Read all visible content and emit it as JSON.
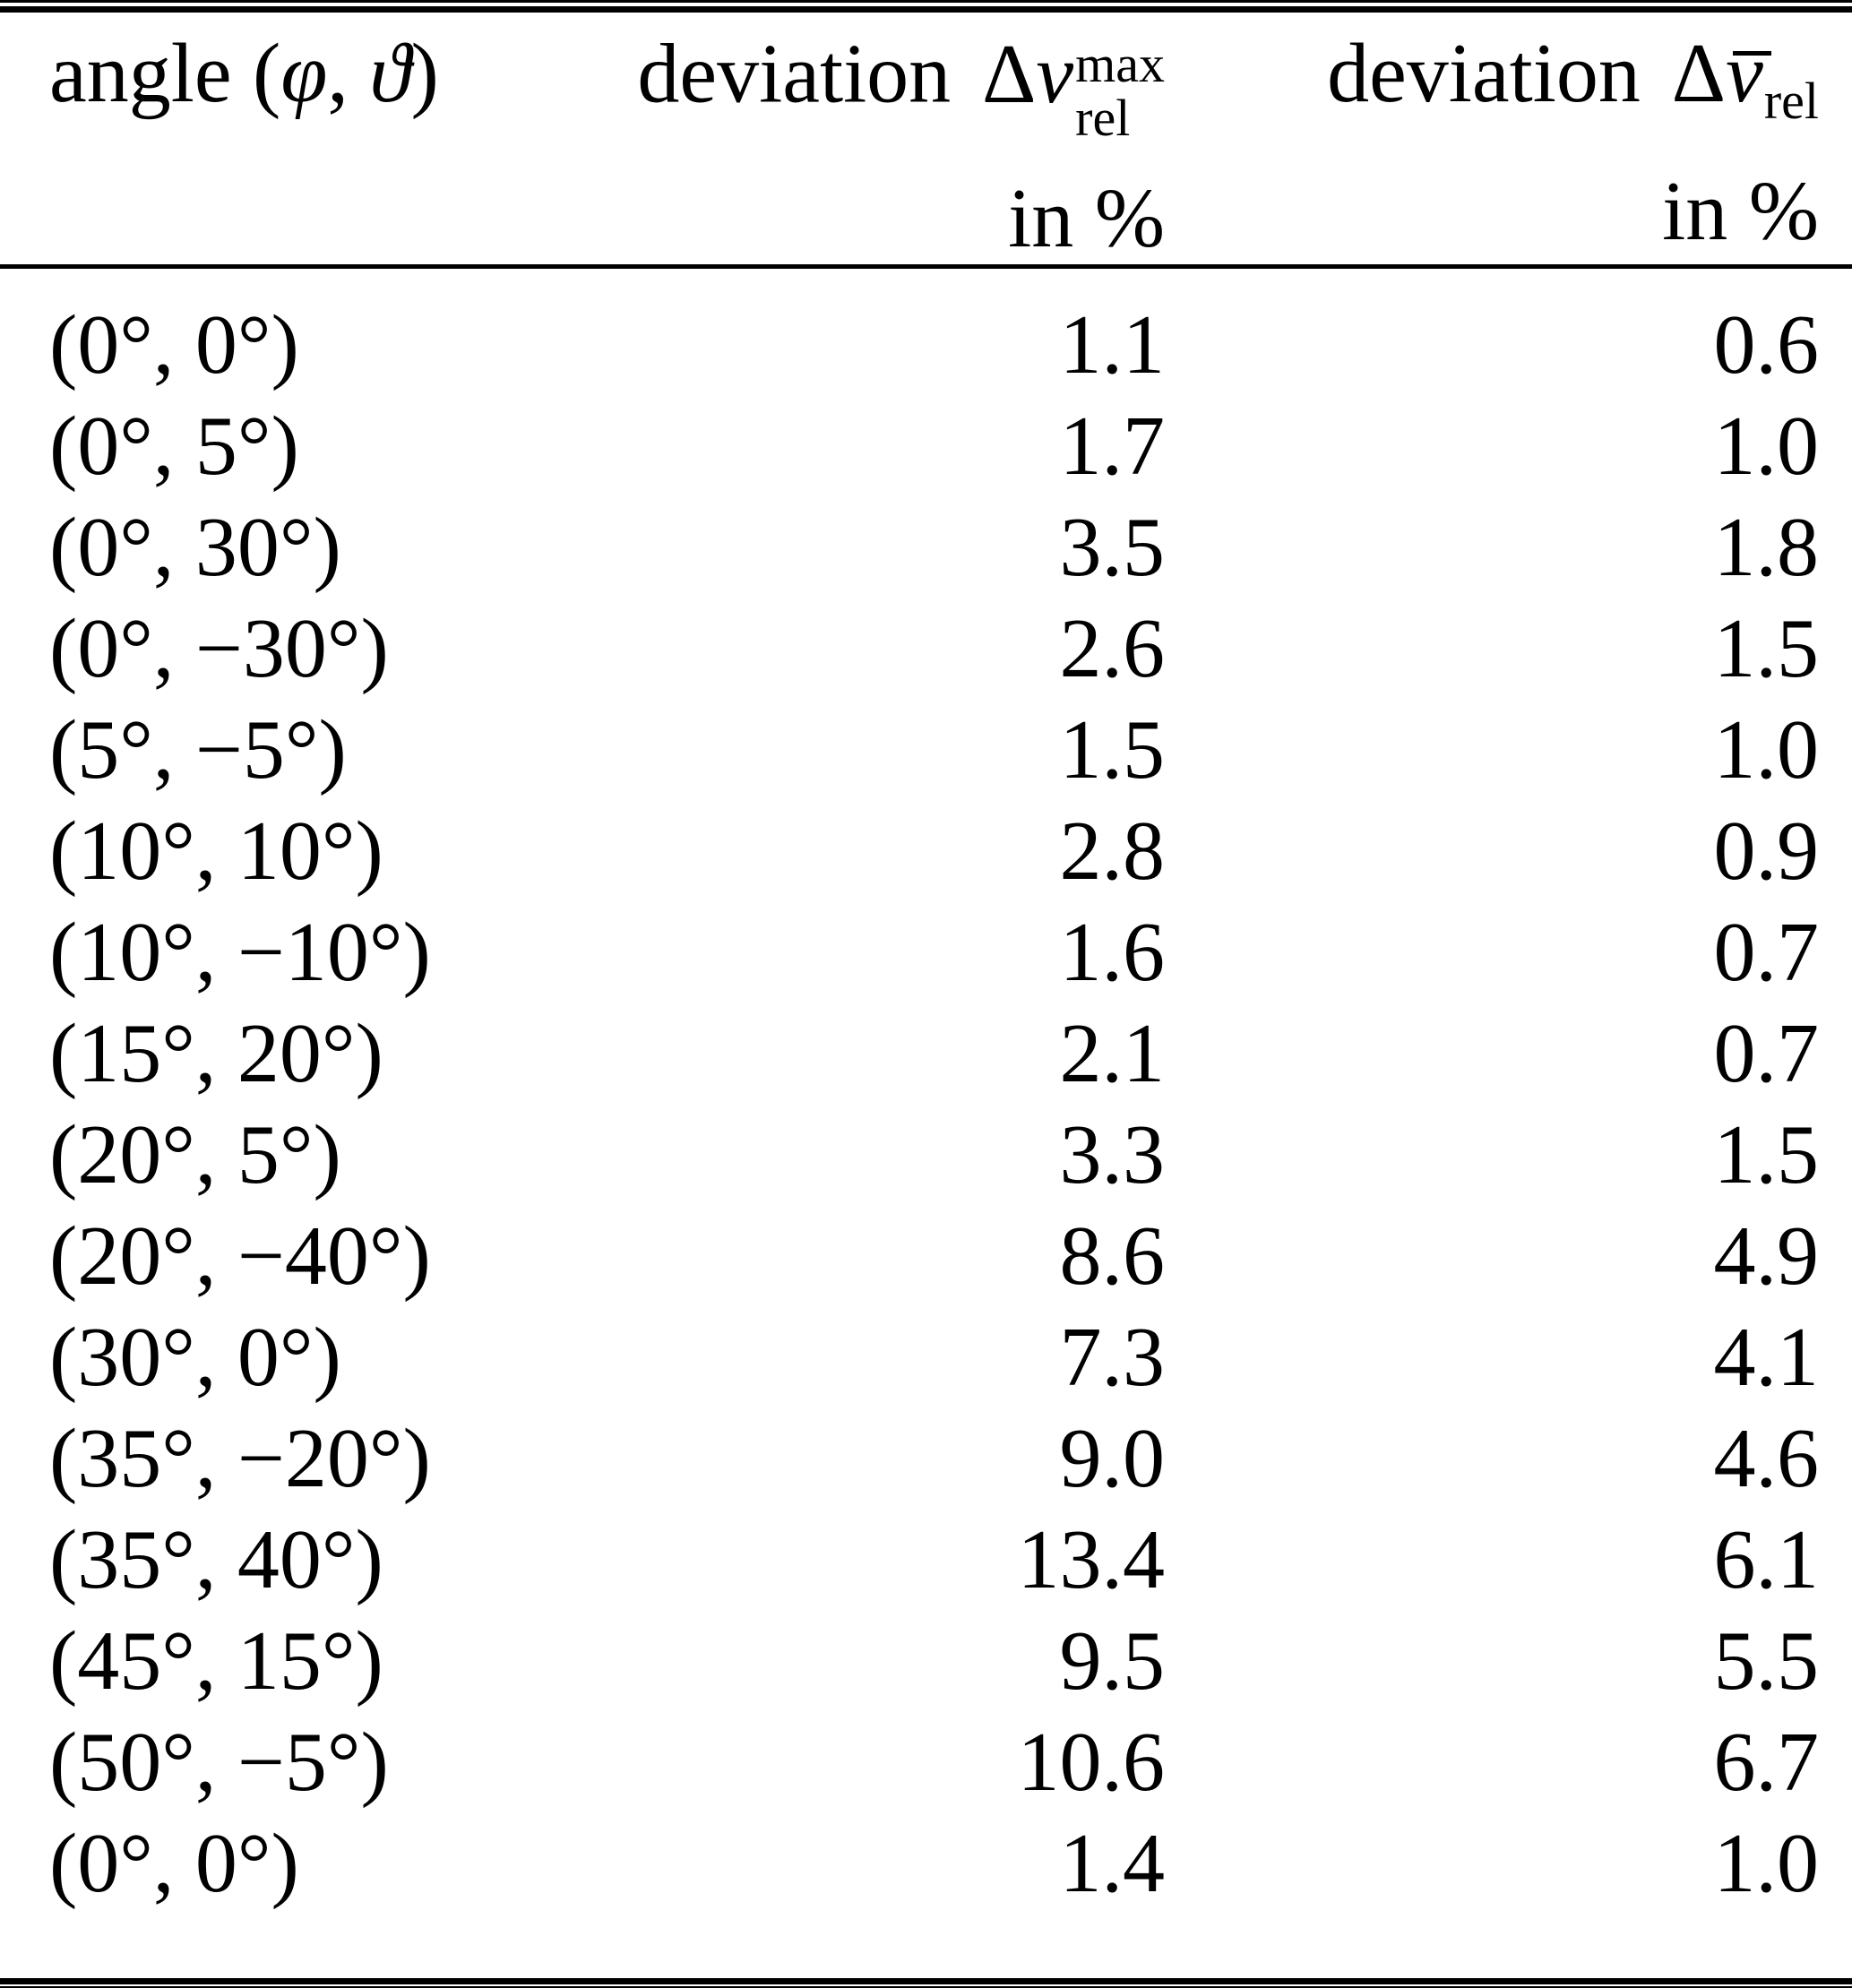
{
  "header": {
    "col1": {
      "prefix": "angle (",
      "phi": "φ",
      "comma": ", ",
      "theta": "ϑ",
      "close": ")"
    },
    "col2": {
      "word": "deviation",
      "delta": "Δ",
      "variable": "v",
      "sup": "max",
      "sub": "rel",
      "unit": "in %"
    },
    "col3": {
      "word": "deviation",
      "delta": "Δ",
      "variable": "v",
      "sub": "rel",
      "unit": "in %"
    }
  },
  "rows": [
    {
      "angle": "(0°, 0°)",
      "dev_max": "1.1",
      "dev_mean": "0.6"
    },
    {
      "angle": "(0°, 5°)",
      "dev_max": "1.7",
      "dev_mean": "1.0"
    },
    {
      "angle": "(0°, 30°)",
      "dev_max": "3.5",
      "dev_mean": "1.8"
    },
    {
      "angle": "(0°, −30°)",
      "dev_max": "2.6",
      "dev_mean": "1.5"
    },
    {
      "angle": "(5°, −5°)",
      "dev_max": "1.5",
      "dev_mean": "1.0"
    },
    {
      "angle": "(10°, 10°)",
      "dev_max": "2.8",
      "dev_mean": "0.9"
    },
    {
      "angle": "(10°, −10°)",
      "dev_max": "1.6",
      "dev_mean": "0.7"
    },
    {
      "angle": "(15°, 20°)",
      "dev_max": "2.1",
      "dev_mean": "0.7"
    },
    {
      "angle": "(20°, 5°)",
      "dev_max": "3.3",
      "dev_mean": "1.5"
    },
    {
      "angle": "(20°, −40°)",
      "dev_max": "8.6",
      "dev_mean": "4.9"
    },
    {
      "angle": "(30°, 0°)",
      "dev_max": "7.3",
      "dev_mean": "4.1"
    },
    {
      "angle": "(35°, −20°)",
      "dev_max": "9.0",
      "dev_mean": "4.6"
    },
    {
      "angle": "(35°, 40°)",
      "dev_max": "13.4",
      "dev_mean": "6.1"
    },
    {
      "angle": "(45°, 15°)",
      "dev_max": "9.5",
      "dev_mean": "5.5"
    },
    {
      "angle": "(50°, −5°)",
      "dev_max": "10.6",
      "dev_mean": "6.7"
    },
    {
      "angle": "(0°, 0°)",
      "dev_max": "1.4",
      "dev_mean": "1.0"
    }
  ],
  "chart_data": {
    "type": "table",
    "title": "",
    "columns": [
      "angle (φ, ϑ)",
      "deviation Δv_rel^max in %",
      "deviation Δv̄_rel in %"
    ],
    "rows": [
      [
        "(0°, 0°)",
        1.1,
        0.6
      ],
      [
        "(0°, 5°)",
        1.7,
        1.0
      ],
      [
        "(0°, 30°)",
        3.5,
        1.8
      ],
      [
        "(0°, −30°)",
        2.6,
        1.5
      ],
      [
        "(5°, −5°)",
        1.5,
        1.0
      ],
      [
        "(10°, 10°)",
        2.8,
        0.9
      ],
      [
        "(10°, −10°)",
        1.6,
        0.7
      ],
      [
        "(15°, 20°)",
        2.1,
        0.7
      ],
      [
        "(20°, 5°)",
        3.3,
        1.5
      ],
      [
        "(20°, −40°)",
        8.6,
        4.9
      ],
      [
        "(30°, 0°)",
        7.3,
        4.1
      ],
      [
        "(35°, −20°)",
        9.0,
        4.6
      ],
      [
        "(35°, 40°)",
        13.4,
        6.1
      ],
      [
        "(45°, 15°)",
        9.5,
        5.5
      ],
      [
        "(50°, −5°)",
        10.6,
        6.7
      ],
      [
        "(0°, 0°)",
        1.4,
        1.0
      ]
    ]
  }
}
